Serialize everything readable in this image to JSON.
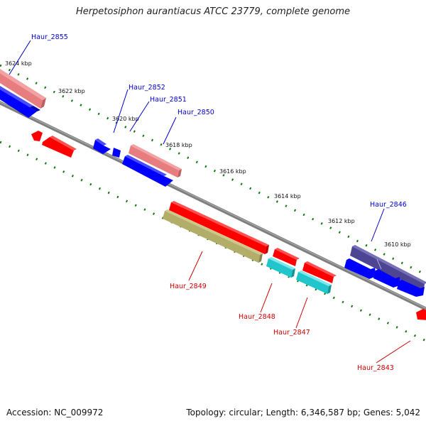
{
  "title": "Herpetosiphon aurantiacus ATCC 23779, complete genome",
  "kbp_labels": [
    "3624 kbp",
    "3622 kbp",
    "3620 kbp",
    "3618 kbp",
    "3616 kbp",
    "3614 kbp",
    "3612 kbp",
    "3610 kbp"
  ],
  "genes": [
    {
      "name": "Haur_2855",
      "strand": "+",
      "color": "#0000cc"
    },
    {
      "name": "Haur_2852",
      "strand": "+",
      "color": "#0000cc"
    },
    {
      "name": "Haur_2851",
      "strand": "+",
      "color": "#0000cc"
    },
    {
      "name": "Haur_2850",
      "strand": "+",
      "color": "#0000cc"
    },
    {
      "name": "Haur_2849",
      "strand": "-",
      "color": "#cc0000"
    },
    {
      "name": "Haur_2848",
      "strand": "-",
      "color": "#cc0000"
    },
    {
      "name": "Haur_2847",
      "strand": "-",
      "color": "#cc0000"
    },
    {
      "name": "Haur_2846",
      "strand": "+",
      "color": "#0000cc"
    },
    {
      "name": "Haur_2843",
      "strand": "-",
      "color": "#cc0000"
    }
  ],
  "colors": {
    "backbone": "#7f7f7f",
    "forward_gene": "#0000ff",
    "reverse_gene": "#ff0000",
    "pseudo_pink": "#e87d80",
    "olive": "#b3ad6a",
    "cyan": "#21c6cc",
    "purple": "#4d4594",
    "tick": "#117711"
  },
  "accession": "Accession: NC_009972",
  "summary": "Topology: circular; Length: 6,346,587 bp; Genes: 5,042"
}
